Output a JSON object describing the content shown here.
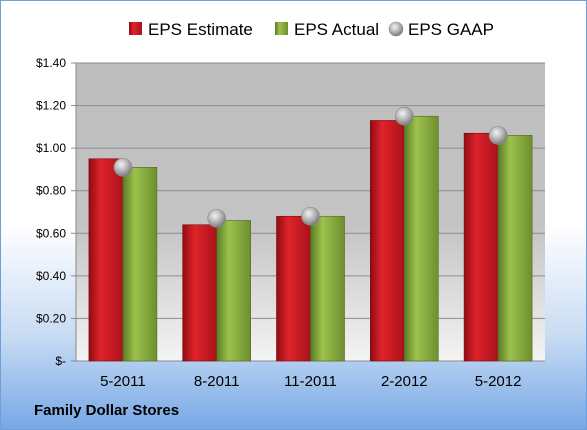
{
  "footer_text": "Family Dollar Stores",
  "chart_data": {
    "type": "bar",
    "categories": [
      "5-2011",
      "8-2011",
      "11-2011",
      "2-2012",
      "5-2012"
    ],
    "series": [
      {
        "name": "EPS Estimate",
        "kind": "bar",
        "color": "#c0141c",
        "values": [
          0.95,
          0.64,
          0.68,
          1.13,
          1.07
        ]
      },
      {
        "name": "EPS Actual",
        "kind": "bar",
        "color": "#7fa23a",
        "values": [
          0.91,
          0.66,
          0.68,
          1.15,
          1.06
        ]
      },
      {
        "name": "EPS GAAP",
        "kind": "marker",
        "color": "#a9a9a9",
        "values": [
          0.91,
          0.67,
          0.68,
          1.15,
          1.06
        ]
      }
    ],
    "yticks": [
      {
        "value": 0,
        "label": "$-"
      },
      {
        "value": 0.2,
        "label": "$0.20"
      },
      {
        "value": 0.4,
        "label": "$0.40"
      },
      {
        "value": 0.6,
        "label": "$0.60"
      },
      {
        "value": 0.8,
        "label": "$0.80"
      },
      {
        "value": 1.0,
        "label": "$1.00"
      },
      {
        "value": 1.2,
        "label": "$1.20"
      },
      {
        "value": 1.4,
        "label": "$1.40"
      }
    ],
    "ylim": [
      0,
      1.4
    ],
    "grid": true,
    "legend_position": "top"
  }
}
